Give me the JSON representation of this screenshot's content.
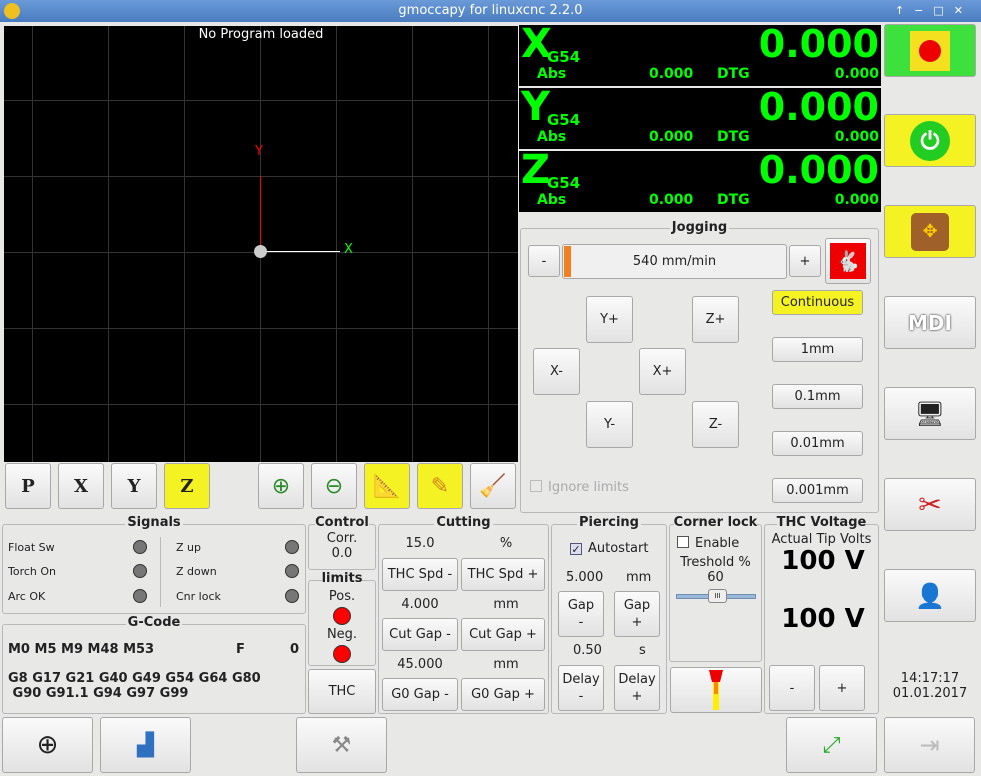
{
  "window": {
    "title": "gmoccapy for linuxcnc  2.2.0",
    "controls": [
      "↑",
      "−",
      "□",
      "✕"
    ]
  },
  "preview": {
    "status": "No Program loaded",
    "axis_x": "X",
    "axis_y": "Y"
  },
  "view_buttons": [
    "P",
    "X",
    "Y",
    "Z"
  ],
  "dro": [
    {
      "axis": "X",
      "coord": "G54",
      "value": "0.000",
      "abs_label": "Abs",
      "abs": "0.000",
      "dtg_label": "DTG",
      "dtg": "0.000"
    },
    {
      "axis": "Y",
      "coord": "G54",
      "value": "0.000",
      "abs_label": "Abs",
      "abs": "0.000",
      "dtg_label": "DTG",
      "dtg": "0.000"
    },
    {
      "axis": "Z",
      "coord": "G54",
      "value": "0.000",
      "abs_label": "Abs",
      "abs": "0.000",
      "dtg_label": "DTG",
      "dtg": "0.000"
    }
  ],
  "jogging": {
    "title": "Jogging",
    "minus": "-",
    "plus": "+",
    "speed": "540 mm/min",
    "speed_fraction": 0.02,
    "buttons": {
      "yp": "Y+",
      "zp": "Z+",
      "xm": "X-",
      "xp": "X+",
      "ym": "Y-",
      "zm": "Z-"
    },
    "increments": [
      "Continuous",
      "1mm",
      "0.1mm",
      "0.01mm",
      "0.001mm"
    ],
    "ignore_limits": "Ignore limits"
  },
  "signals": {
    "title": "Signals",
    "left": [
      "Float Sw",
      "Torch On",
      "Arc OK"
    ],
    "right": [
      "Z up",
      "Z down",
      "Cnr lock"
    ]
  },
  "gcode": {
    "title": "G-Code",
    "mcodes": "M0 M5 M9 M48 M53",
    "f_label": "F",
    "f_value": "0",
    "gcodes1": "G8 G17 G21 G40 G49 G54 G64 G80",
    "gcodes2": " G90 G91.1 G94 G97 G99"
  },
  "control": {
    "title": "Control",
    "corr_label": "Corr.",
    "corr": "0.0"
  },
  "limits": {
    "title": "limits",
    "pos": "Pos.",
    "neg": "Neg.",
    "thc": "THC",
    "color": "#ff0000"
  },
  "cutting": {
    "title": "Cutting",
    "spd": "15.0",
    "spd_unit": "%",
    "spd_minus": "THC Spd -",
    "spd_plus": "THC Spd +",
    "cut": "4.000",
    "cut_unit": "mm",
    "cut_minus": "Cut Gap -",
    "cut_plus": "Cut Gap +",
    "g0": "45.000",
    "g0_unit": "mm",
    "g0_minus": "G0 Gap -",
    "g0_plus": "G0 Gap +"
  },
  "piercing": {
    "title": "Piercing",
    "autostart": "Autostart",
    "gap": "5.000",
    "gap_unit": "mm",
    "gap_minus": "Gap\n-",
    "gap_plus": "Gap\n+",
    "delay": "0.50",
    "delay_unit": "s",
    "delay_minus": "Delay\n-",
    "delay_plus": "Delay\n+"
  },
  "corner_lock": {
    "title": "Corner lock",
    "enable": "Enable",
    "threshold_label": "Treshold %",
    "threshold": "60"
  },
  "thc_voltage": {
    "title": "THC Voltage",
    "actual_label": "Actual Tip Volts",
    "actual": "100 V",
    "set": "100 V",
    "minus": "-",
    "plus": "+"
  },
  "clock": {
    "time": "14:17:17",
    "date": "01.01.2017"
  },
  "sidebar": {
    "mdi": "MDI"
  }
}
